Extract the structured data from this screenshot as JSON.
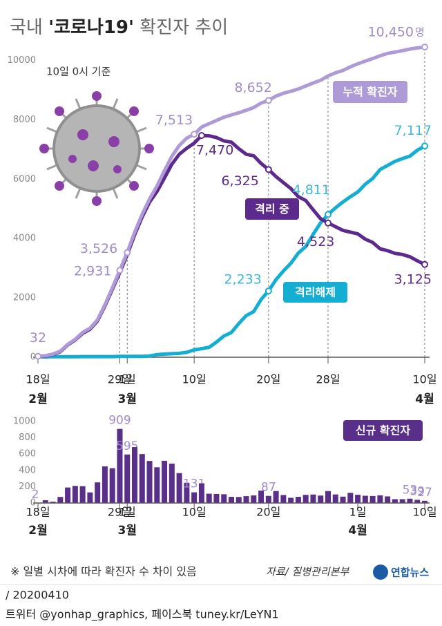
{
  "header": {
    "title_prefix": "국내",
    "title_highlight": "'코로나19'",
    "title_suffix": "확진자 추이",
    "subtitle": "10일 0시 기준"
  },
  "chart_data": [
    {
      "type": "line",
      "unit": "명",
      "categories": [
        "18일",
        null,
        null,
        null,
        null,
        null,
        null,
        null,
        null,
        null,
        null,
        "29일",
        "1일",
        null,
        null,
        null,
        null,
        null,
        null,
        null,
        null,
        "10일",
        null,
        null,
        null,
        null,
        null,
        null,
        null,
        null,
        null,
        "20일",
        null,
        null,
        null,
        null,
        null,
        null,
        null,
        "28일",
        null,
        null,
        null,
        null,
        null,
        null,
        null,
        null,
        null,
        null,
        null,
        null,
        "10일"
      ],
      "groups": [
        {
          "label": "2월",
          "from": 0
        },
        {
          "label": "3월",
          "from": 12
        },
        {
          "label": "4월",
          "from": 43
        }
      ],
      "ylim": [
        0,
        10500
      ],
      "yticks": [
        0,
        2000,
        4000,
        6000,
        8000,
        10000
      ],
      "series": [
        {
          "name": "누적 확진자",
          "color": "#ad9ad6",
          "label_color": "#a08ccb",
          "values": [
            32,
            51,
            104,
            204,
            433,
            602,
            833,
            977,
            1261,
            1766,
            2337,
            2931,
            3526,
            4212,
            4812,
            5328,
            5766,
            6284,
            6767,
            7134,
            7382,
            7513,
            7755,
            7869,
            7979,
            8086,
            8162,
            8236,
            8320,
            8413,
            8565,
            8652,
            8799,
            8897,
            8961,
            9037,
            9137,
            9241,
            9332,
            9478,
            9583,
            9661,
            9786,
            9887,
            9976,
            10062,
            10156,
            10237,
            10284,
            10331,
            10384,
            10423,
            10450
          ],
          "value_labels": [
            "32",
            null,
            null,
            null,
            null,
            null,
            null,
            null,
            null,
            null,
            null,
            "2,931",
            "3,526",
            null,
            null,
            null,
            null,
            null,
            null,
            null,
            null,
            "7,513",
            null,
            null,
            null,
            null,
            null,
            null,
            null,
            null,
            null,
            "8,652",
            null,
            null,
            null,
            null,
            null,
            null,
            null,
            null,
            null,
            null,
            null,
            null,
            null,
            null,
            null,
            null,
            null,
            null,
            null,
            null,
            "10,450"
          ]
        },
        {
          "name": "격리 중",
          "color": "#5c2a8c",
          "label_color": "#5c2a8c",
          "values": [
            20,
            39,
            88,
            187,
            415,
            582,
            803,
            942,
            1224,
            1728,
            2289,
            2861,
            3450,
            4127,
            4722,
            5225,
            5582,
            6037,
            6500,
            6841,
            7041,
            7212,
            7470,
            7460,
            7402,
            7290,
            7247,
            7024,
            6838,
            6789,
            6527,
            6325,
            6085,
            5884,
            5684,
            5410,
            5281,
            4966,
            4665,
            4523,
            4398,
            4275,
            4216,
            4155,
            3979,
            3867,
            3654,
            3591,
            3500,
            3462,
            3385,
            3250,
            3125
          ],
          "value_labels": [
            null,
            null,
            null,
            null,
            null,
            null,
            null,
            null,
            null,
            null,
            null,
            null,
            null,
            null,
            null,
            null,
            null,
            null,
            null,
            null,
            null,
            null,
            "7,470",
            null,
            null,
            null,
            null,
            null,
            null,
            null,
            null,
            "6,325",
            null,
            null,
            null,
            null,
            null,
            null,
            null,
            "4,523",
            null,
            null,
            null,
            null,
            null,
            null,
            null,
            null,
            null,
            null,
            null,
            null,
            "3,125"
          ]
        },
        {
          "name": "격리해제",
          "color": "#14aed3",
          "label_color": "#3cb7dc",
          "values": [
            12,
            12,
            16,
            16,
            16,
            18,
            22,
            22,
            22,
            22,
            22,
            27,
            30,
            30,
            31,
            41,
            88,
            108,
            118,
            130,
            166,
            247,
            288,
            333,
            510,
            714,
            834,
            1137,
            1401,
            1540,
            1947,
            2233,
            2612,
            2909,
            3166,
            3507,
            3730,
            4144,
            4528,
            4811,
            5033,
            5228,
            5408,
            5567,
            5828,
            6021,
            6325,
            6463,
            6598,
            6694,
            6776,
            6973,
            7117
          ],
          "value_labels": [
            null,
            null,
            null,
            null,
            null,
            null,
            null,
            null,
            null,
            null,
            null,
            null,
            null,
            null,
            null,
            null,
            null,
            null,
            null,
            null,
            null,
            null,
            null,
            null,
            null,
            null,
            null,
            null,
            null,
            null,
            null,
            "2,233",
            null,
            null,
            null,
            null,
            null,
            null,
            null,
            "4,811",
            null,
            null,
            null,
            null,
            null,
            null,
            null,
            null,
            null,
            null,
            null,
            null,
            "7,117"
          ]
        }
      ]
    },
    {
      "type": "bar",
      "name": "신규 확진자",
      "color": "#5a2f8a",
      "label_color": "#a08ccb",
      "categories": [
        "18일",
        null,
        null,
        null,
        null,
        null,
        null,
        null,
        null,
        null,
        null,
        "29일",
        "1일",
        null,
        null,
        null,
        null,
        null,
        null,
        null,
        null,
        "10일",
        null,
        null,
        null,
        null,
        null,
        null,
        null,
        null,
        null,
        "20일",
        null,
        null,
        null,
        null,
        null,
        null,
        null,
        null,
        null,
        null,
        null,
        "1일",
        null,
        null,
        null,
        null,
        null,
        null,
        null,
        null,
        "10일"
      ],
      "groups": [
        {
          "label": "2월",
          "from": 0
        },
        {
          "label": "3월",
          "from": 12
        },
        {
          "label": "4월",
          "from": 43
        }
      ],
      "ylim": [
        0,
        1000
      ],
      "yticks": [
        0,
        200,
        400,
        600,
        800,
        1000
      ],
      "values": [
        2,
        34,
        16,
        74,
        190,
        210,
        207,
        130,
        253,
        449,
        427,
        909,
        595,
        686,
        600,
        516,
        438,
        518,
        483,
        367,
        248,
        131,
        242,
        114,
        110,
        107,
        76,
        74,
        84,
        93,
        152,
        87,
        147,
        98,
        64,
        76,
        100,
        104,
        91,
        146,
        105,
        78,
        125,
        101,
        89,
        86,
        94,
        81,
        47,
        47,
        53,
        39,
        27
      ],
      "value_labels": [
        "2",
        null,
        null,
        null,
        null,
        null,
        null,
        null,
        null,
        null,
        null,
        "909",
        "595",
        null,
        null,
        null,
        null,
        null,
        null,
        null,
        null,
        "131",
        null,
        null,
        null,
        null,
        null,
        null,
        null,
        null,
        null,
        "87",
        null,
        null,
        null,
        null,
        null,
        null,
        null,
        null,
        null,
        null,
        null,
        null,
        null,
        null,
        null,
        null,
        null,
        null,
        "53",
        "39",
        "27"
      ]
    }
  ],
  "footer": {
    "note": "※ 일별 시차에 따라 확진자 수 차이 있음",
    "source": "자료/ 질병관리본부",
    "logo": "연합뉴스",
    "date": "/ 20200410",
    "credit": "트위터 @yonhap_graphics, 페이스북 tuney.kr/LeYN1"
  }
}
